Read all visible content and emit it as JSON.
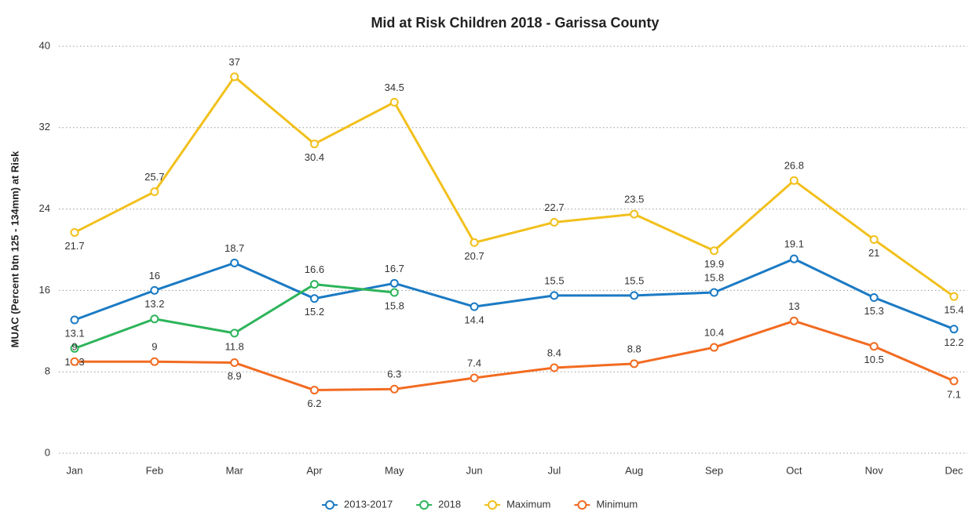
{
  "chart_data": {
    "type": "line",
    "title": "Mid at Risk Children 2018 - Garissa County",
    "y_label": "MUAC (Percent btn 125 - 134mm) at Risk",
    "categories": [
      "Jan",
      "Feb",
      "Mar",
      "Apr",
      "May",
      "Jun",
      "Jul",
      "Aug",
      "Sep",
      "Oct",
      "Nov",
      "Dec"
    ],
    "series": [
      {
        "name": "2013-2017",
        "color": "#1b7ac4",
        "values": [
          13.1,
          16,
          18.7,
          15.2,
          16.7,
          14.4,
          15.5,
          15.5,
          15.8,
          19.1,
          15.3,
          12.2
        ]
      },
      {
        "name": "2018",
        "color": "#2db45a",
        "values": [
          10.3,
          13.2,
          11.8,
          16.6,
          15.8,
          null,
          null,
          null,
          null,
          null,
          null,
          null
        ]
      },
      {
        "name": "Maximum",
        "color": "#f2c01c",
        "values": [
          21.7,
          25.7,
          37,
          30.4,
          34.5,
          20.7,
          22.7,
          23.5,
          19.9,
          26.8,
          21,
          15.4
        ]
      },
      {
        "name": "Minimum",
        "color": "#f26b21",
        "values": [
          9,
          9,
          8.9,
          6.2,
          6.3,
          7.4,
          8.4,
          8.8,
          10.4,
          13,
          10.5,
          7.1
        ]
      }
    ],
    "ylim": [
      0,
      40
    ],
    "yticks": [
      0,
      8,
      16,
      24,
      32,
      40
    ],
    "grid": true,
    "legend": "bottom"
  }
}
